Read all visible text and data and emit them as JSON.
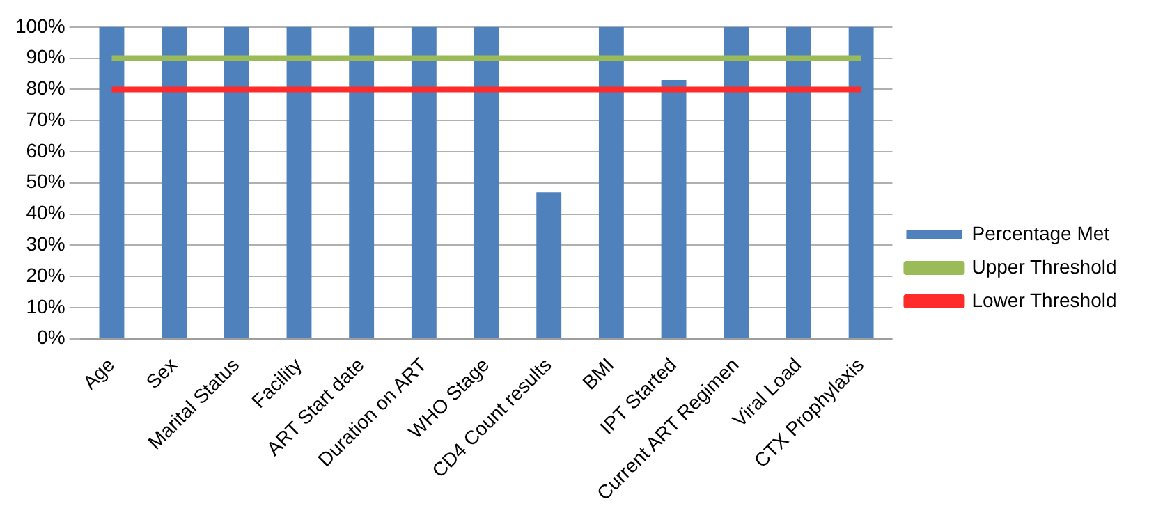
{
  "chart_data": {
    "type": "bar",
    "categories": [
      "Age",
      "Sex",
      "Marital Status",
      "Facility",
      "ART Start date",
      "Duration on ART",
      "WHO Stage",
      "CD4 Count results",
      "BMI",
      "IPT Started",
      "Current ART Regimen",
      "Viral Load",
      "CTX Prophylaxis"
    ],
    "series": [
      {
        "name": "Percentage Met",
        "color": "#4f81bd",
        "values": [
          100,
          100,
          100,
          100,
          100,
          100,
          100,
          47,
          100,
          83,
          100,
          100,
          100
        ]
      },
      {
        "name": "Upper Threshold",
        "type": "line",
        "color": "#9bbb59",
        "values": [
          90,
          90,
          90,
          90,
          90,
          90,
          90,
          90,
          90,
          90,
          90,
          90,
          90
        ]
      },
      {
        "name": "Lower Threshold",
        "type": "line",
        "color": "#ff2a2a",
        "values": [
          80,
          80,
          80,
          80,
          80,
          80,
          80,
          80,
          80,
          80,
          80,
          80,
          80
        ]
      }
    ],
    "ylim": [
      0,
      100
    ],
    "yticks": [
      {
        "value": 0,
        "label": "0%"
      },
      {
        "value": 10,
        "label": "10%"
      },
      {
        "value": 20,
        "label": "20%"
      },
      {
        "value": 30,
        "label": "30%"
      },
      {
        "value": 40,
        "label": "40%"
      },
      {
        "value": 50,
        "label": "50%"
      },
      {
        "value": 60,
        "label": "60%"
      },
      {
        "value": 70,
        "label": "70%"
      },
      {
        "value": 80,
        "label": "80%"
      },
      {
        "value": 90,
        "label": "90%"
      },
      {
        "value": 100,
        "label": "100%"
      }
    ],
    "grid": "y",
    "legend": "right",
    "marker": "none"
  }
}
